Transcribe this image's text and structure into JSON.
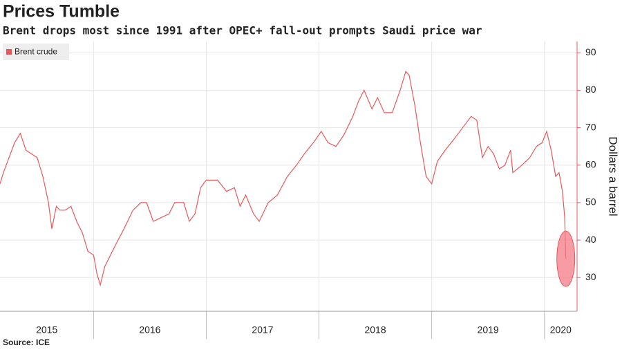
{
  "chart_data": {
    "type": "line",
    "title": "Prices Tumble",
    "subtitle": "Brent drops most since 1991 after OPEC+ fall-out prompts Saudi price war",
    "y_axis_label": "Dollars a barrel",
    "source": "Source: ICE",
    "year_labels": [
      "2015",
      "2016",
      "2017",
      "2018",
      "2019",
      "2020"
    ],
    "xlim": [
      2015.17,
      2020.29
    ],
    "xticks": [
      2016,
      2017,
      2018,
      2019,
      2020
    ],
    "ylim": [
      21,
      93
    ],
    "yticks": [
      30,
      40,
      50,
      60,
      70,
      80,
      90
    ],
    "grid": true,
    "legend": "top-left",
    "series": [
      {
        "name": "Brent crude",
        "color": "#e8585a",
        "x": [
          2015.17,
          2015.2,
          2015.25,
          2015.3,
          2015.35,
          2015.4,
          2015.45,
          2015.5,
          2015.55,
          2015.6,
          2015.63,
          2015.67,
          2015.7,
          2015.75,
          2015.8,
          2015.85,
          2015.9,
          2015.95,
          2016.0,
          2016.03,
          2016.06,
          2016.1,
          2016.15,
          2016.2,
          2016.27,
          2016.35,
          2016.42,
          2016.47,
          2016.53,
          2016.6,
          2016.67,
          2016.72,
          2016.8,
          2016.85,
          2016.9,
          2016.95,
          2017.0,
          2017.1,
          2017.18,
          2017.25,
          2017.3,
          2017.35,
          2017.42,
          2017.47,
          2017.55,
          2017.63,
          2017.72,
          2017.8,
          2017.87,
          2017.95,
          2018.02,
          2018.08,
          2018.15,
          2018.22,
          2018.3,
          2018.35,
          2018.4,
          2018.47,
          2018.52,
          2018.58,
          2018.65,
          2018.72,
          2018.77,
          2018.8,
          2018.85,
          2018.9,
          2018.95,
          2019.0,
          2019.05,
          2019.12,
          2019.2,
          2019.3,
          2019.35,
          2019.4,
          2019.45,
          2019.5,
          2019.55,
          2019.6,
          2019.65,
          2019.7,
          2019.72,
          2019.8,
          2019.87,
          2019.93,
          2019.98,
          2020.02,
          2020.06,
          2020.1,
          2020.13,
          2020.16,
          2020.18,
          2020.19
        ],
        "values": [
          55,
          58,
          62,
          66,
          68.5,
          64,
          63,
          62,
          57,
          50,
          43,
          49,
          48,
          48,
          49,
          45,
          42,
          37,
          36,
          31,
          28,
          33,
          36,
          39,
          43,
          48,
          50,
          50,
          45,
          46,
          47,
          50,
          50,
          45,
          47,
          54,
          56,
          56,
          53,
          54,
          49,
          52,
          47,
          45,
          50,
          52,
          57,
          60,
          63,
          66,
          69,
          66,
          65,
          68,
          73,
          77,
          80,
          75,
          78,
          74,
          74,
          80,
          85,
          84,
          76,
          66,
          57,
          55,
          61,
          64,
          67,
          71,
          73,
          72,
          62,
          65,
          63,
          59,
          60,
          64,
          58,
          60,
          62,
          65,
          66,
          69,
          64,
          57,
          58,
          53,
          46,
          35
        ]
      }
    ]
  }
}
